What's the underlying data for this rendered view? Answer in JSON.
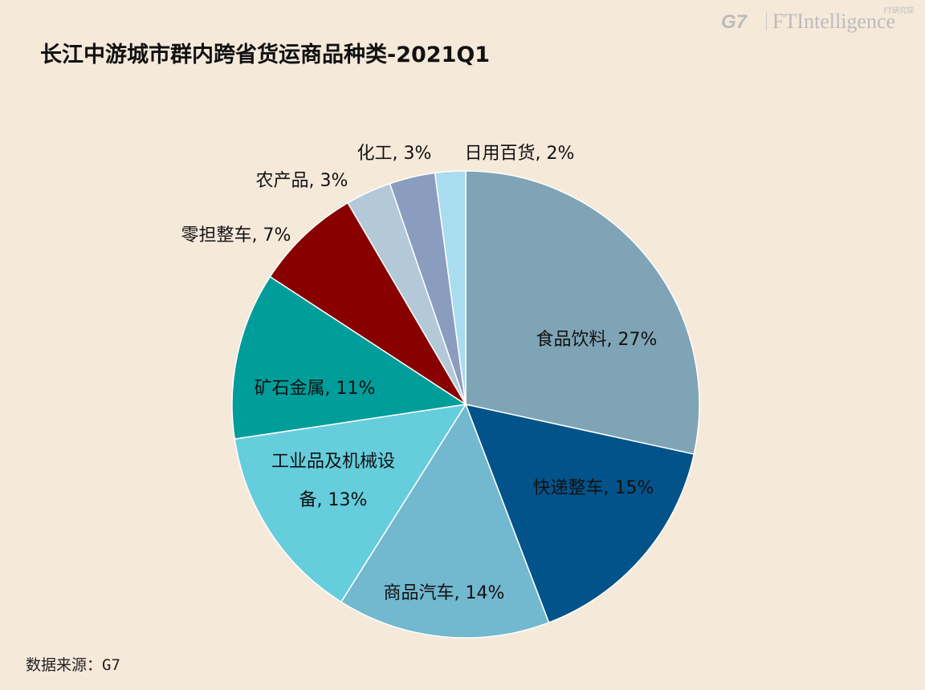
{
  "title": "长江中游城市群内跨省货运商品种类-2021Q1",
  "source": "数据来源：G7",
  "brand": {
    "g7": "G7",
    "ft": "FTIntelligence",
    "sub": "FT研究院"
  },
  "chart_data": {
    "type": "pie",
    "title": "长江中游城市群内跨省货运商品种类-2021Q1",
    "slices": [
      {
        "label": "食品饮料",
        "value": 27,
        "display": "食品饮料, 27%",
        "color": "#7fa4b6"
      },
      {
        "label": "快递整车",
        "value": 15,
        "display": "快递整车, 15%",
        "color": "#02538a"
      },
      {
        "label": "商品汽车",
        "value": 14,
        "display": "商品汽车, 14%",
        "color": "#72b8cf"
      },
      {
        "label": "工业品及机械设备",
        "value": 13,
        "display": [
          "工业品及机械设",
          "备, 13%"
        ],
        "color": "#65cddc"
      },
      {
        "label": "矿石金属",
        "value": 11,
        "display": "矿石金属, 11%",
        "color": "#009d9a"
      },
      {
        "label": "零担整车",
        "value": 7,
        "display": "零担整车, 7%",
        "color": "#880000"
      },
      {
        "label": "农产品",
        "value": 3,
        "display": "农产品, 3%",
        "color": "#b3c9d8"
      },
      {
        "label": "化工",
        "value": 3,
        "display": "化工, 3%",
        "color": "#8a9dbe"
      },
      {
        "label": "日用百货",
        "value": 2,
        "display": "日用百货, 2%",
        "color": "#a9dcee"
      }
    ]
  }
}
